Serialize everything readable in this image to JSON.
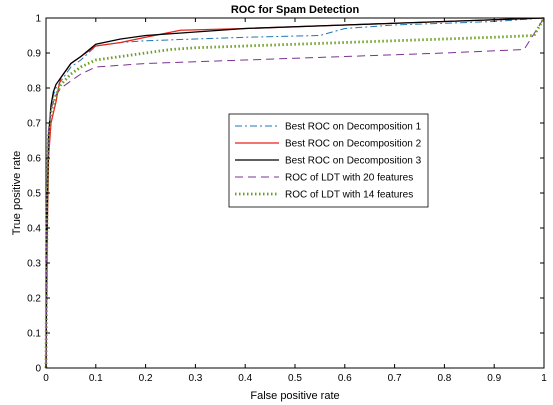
{
  "chart_data": {
    "type": "line",
    "title": "ROC for Spam Detection",
    "xlabel": "False positive rate",
    "ylabel": "True positive rate",
    "xlim": [
      0,
      1
    ],
    "ylim": [
      0,
      1
    ],
    "xticks": [
      0,
      0.1,
      0.2,
      0.3,
      0.4,
      0.5,
      0.6,
      0.7,
      0.8,
      0.9,
      1
    ],
    "xtick_labels": [
      "0",
      "0.1",
      "0.2",
      "0.3",
      "0.4",
      "0.5",
      "0.6",
      "0.7",
      "0.8",
      "0.9",
      "1"
    ],
    "yticks": [
      0,
      0.1,
      0.2,
      0.3,
      0.4,
      0.5,
      0.6,
      0.7,
      0.8,
      0.9,
      1
    ],
    "ytick_labels": [
      "0",
      "0.1",
      "0.2",
      "0.3",
      "0.4",
      "0.5",
      "0.6",
      "0.7",
      "0.8",
      "0.9",
      "1"
    ],
    "grid": false,
    "legend_position": "center-right",
    "series": [
      {
        "name": "Best ROC on Decomposition 1",
        "color": "#1f77b4",
        "style": "dashdot",
        "points": [
          [
            0,
            0
          ],
          [
            0.002,
            0.4
          ],
          [
            0.005,
            0.65
          ],
          [
            0.01,
            0.74
          ],
          [
            0.015,
            0.78
          ],
          [
            0.02,
            0.8
          ],
          [
            0.03,
            0.82
          ],
          [
            0.04,
            0.84
          ],
          [
            0.05,
            0.86
          ],
          [
            0.07,
            0.88
          ],
          [
            0.1,
            0.92
          ],
          [
            0.15,
            0.93
          ],
          [
            0.2,
            0.935
          ],
          [
            0.3,
            0.94
          ],
          [
            0.4,
            0.945
          ],
          [
            0.55,
            0.95
          ],
          [
            0.6,
            0.97
          ],
          [
            0.7,
            0.98
          ],
          [
            0.8,
            0.985
          ],
          [
            0.9,
            0.99
          ],
          [
            1,
            1
          ]
        ]
      },
      {
        "name": "Best ROC on Decomposition 2",
        "color": "#e8231c",
        "style": "solid",
        "points": [
          [
            0,
            0
          ],
          [
            0.002,
            0.35
          ],
          [
            0.005,
            0.6
          ],
          [
            0.01,
            0.7
          ],
          [
            0.015,
            0.73
          ],
          [
            0.02,
            0.76
          ],
          [
            0.025,
            0.8
          ],
          [
            0.03,
            0.83
          ],
          [
            0.04,
            0.85
          ],
          [
            0.05,
            0.87
          ],
          [
            0.07,
            0.89
          ],
          [
            0.1,
            0.92
          ],
          [
            0.15,
            0.93
          ],
          [
            0.2,
            0.945
          ],
          [
            0.27,
            0.965
          ],
          [
            0.4,
            0.97
          ],
          [
            0.6,
            0.98
          ],
          [
            0.8,
            0.99
          ],
          [
            0.9,
            0.995
          ],
          [
            1,
            1
          ]
        ]
      },
      {
        "name": "Best ROC  on Decomposition 3",
        "color": "#000000",
        "style": "solid",
        "points": [
          [
            0,
            0
          ],
          [
            0.002,
            0.4
          ],
          [
            0.005,
            0.66
          ],
          [
            0.01,
            0.75
          ],
          [
            0.015,
            0.79
          ],
          [
            0.02,
            0.81
          ],
          [
            0.03,
            0.83
          ],
          [
            0.04,
            0.85
          ],
          [
            0.05,
            0.87
          ],
          [
            0.07,
            0.89
          ],
          [
            0.1,
            0.925
          ],
          [
            0.15,
            0.94
          ],
          [
            0.2,
            0.95
          ],
          [
            0.3,
            0.96
          ],
          [
            0.4,
            0.97
          ],
          [
            0.6,
            0.98
          ],
          [
            0.8,
            0.99
          ],
          [
            0.9,
            0.995
          ],
          [
            1,
            1
          ]
        ]
      },
      {
        "name": "ROC of LDT with 20 features",
        "color": "#7b3294",
        "style": "dashed",
        "points": [
          [
            0,
            0
          ],
          [
            0.002,
            0.5
          ],
          [
            0.005,
            0.68
          ],
          [
            0.01,
            0.74
          ],
          [
            0.02,
            0.78
          ],
          [
            0.03,
            0.8
          ],
          [
            0.05,
            0.82
          ],
          [
            0.07,
            0.84
          ],
          [
            0.1,
            0.86
          ],
          [
            0.2,
            0.87
          ],
          [
            0.3,
            0.875
          ],
          [
            0.4,
            0.88
          ],
          [
            0.5,
            0.885
          ],
          [
            0.6,
            0.89
          ],
          [
            0.8,
            0.9
          ],
          [
            0.96,
            0.91
          ],
          [
            1,
            1
          ]
        ]
      },
      {
        "name": "ROC of LDT with 14 features",
        "color": "#6aa121",
        "style": "dotted",
        "points": [
          [
            0,
            0
          ],
          [
            0.002,
            0.45
          ],
          [
            0.005,
            0.66
          ],
          [
            0.01,
            0.73
          ],
          [
            0.02,
            0.78
          ],
          [
            0.03,
            0.81
          ],
          [
            0.05,
            0.84
          ],
          [
            0.07,
            0.86
          ],
          [
            0.1,
            0.88
          ],
          [
            0.15,
            0.89
          ],
          [
            0.2,
            0.9
          ],
          [
            0.25,
            0.91
          ],
          [
            0.3,
            0.915
          ],
          [
            0.4,
            0.92
          ],
          [
            0.5,
            0.925
          ],
          [
            0.6,
            0.93
          ],
          [
            0.7,
            0.935
          ],
          [
            0.8,
            0.94
          ],
          [
            0.9,
            0.945
          ],
          [
            0.98,
            0.95
          ],
          [
            1,
            1
          ]
        ]
      }
    ]
  }
}
